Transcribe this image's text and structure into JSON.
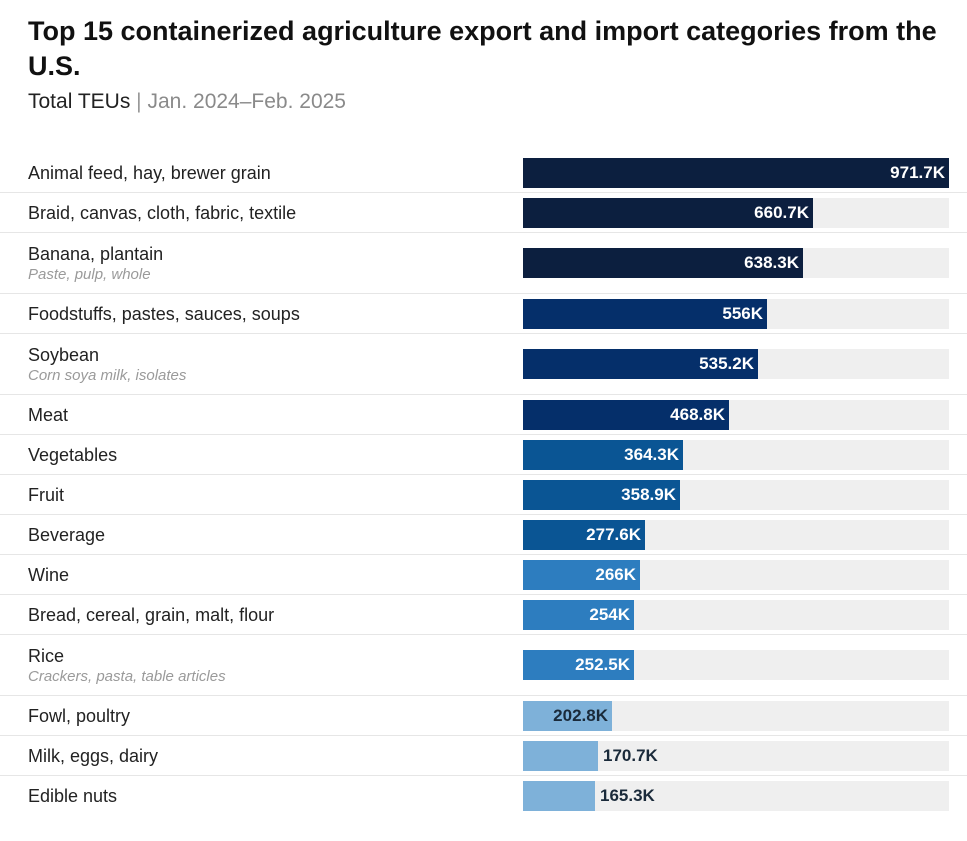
{
  "header": {
    "title": "Top 15 containerized agriculture export and import categories from the U.S.",
    "subtitle_metric": "Total TEUs",
    "subtitle_separator": "|",
    "subtitle_period": "Jan. 2024–Feb. 2025"
  },
  "chart_data": {
    "type": "bar",
    "orientation": "horizontal",
    "title": "Top 15 containerized agriculture export and import categories from the U.S.",
    "subtitle": "Total TEUs | Jan. 2024–Feb. 2025",
    "xlabel": "",
    "ylabel": "",
    "xlim": [
      0,
      971.7
    ],
    "grid": false,
    "legend": "none",
    "unit_suffix": "K",
    "categories": [
      "Animal feed, hay, brewer grain",
      "Braid, canvas, cloth, fabric, textile",
      "Banana, plantain",
      "Foodstuffs, pastes, sauces, soups",
      "Soybean",
      "Meat",
      "Vegetables",
      "Fruit",
      "Beverage",
      "Wine",
      "Bread, cereal, grain, malt, flour",
      "Rice",
      "Fowl, poultry",
      "Milk, eggs, dairy",
      "Edible nuts"
    ],
    "sublabels": [
      "",
      "",
      "Paste, pulp, whole",
      "",
      "Corn soya milk, isolates",
      "",
      "",
      "",
      "",
      "",
      "",
      "Crackers, pasta, table articles",
      "",
      "",
      ""
    ],
    "values": [
      971.7,
      660.7,
      638.3,
      556,
      535.2,
      468.8,
      364.3,
      358.9,
      277.6,
      266,
      254,
      252.5,
      202.8,
      170.7,
      165.3
    ],
    "value_labels": [
      "971.7K",
      "660.7K",
      "638.3K",
      "556K",
      "535.2K",
      "468.8K",
      "364.3K",
      "358.9K",
      "277.6K",
      "266K",
      "254K",
      "252.5K",
      "202.8K",
      "170.7K",
      "165.3K"
    ],
    "bar_colors": [
      "#0c1f3f",
      "#0c1f3f",
      "#0c1f3f",
      "#052f6a",
      "#052f6a",
      "#052f6a",
      "#0a5594",
      "#0a5594",
      "#0a5594",
      "#2d7dbf",
      "#2d7dbf",
      "#2d7dbf",
      "#7eb1d9",
      "#7eb1d9",
      "#7eb1d9"
    ],
    "track_color": "#efefef",
    "label_color_on_dark": "#ffffff",
    "label_color_on_light": "#1a2a3a"
  }
}
